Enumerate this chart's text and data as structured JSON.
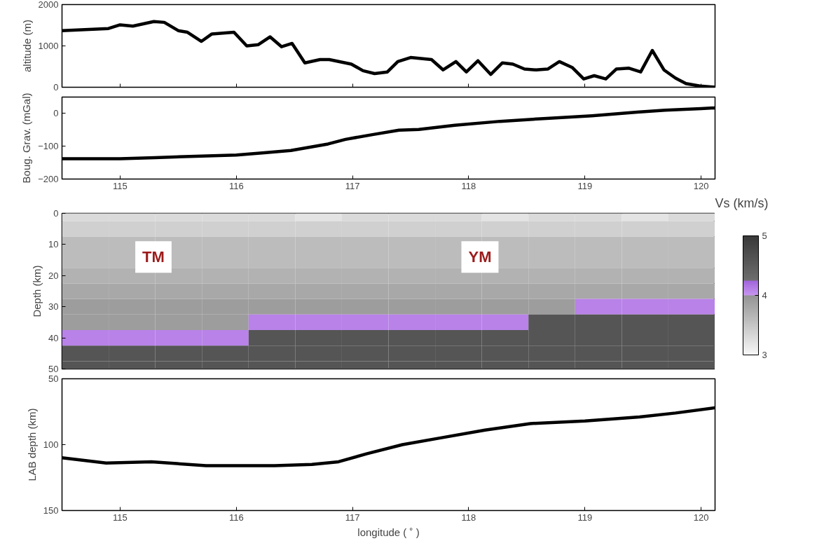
{
  "chart_data": [
    {
      "type": "line",
      "ylabel": "altitude (m)",
      "xlim": [
        114.5,
        120.12
      ],
      "xticks": [
        115,
        116,
        117,
        118,
        119,
        120
      ],
      "ylim": [
        0,
        2000
      ],
      "yticks": [
        0,
        1000,
        2000
      ],
      "tick_labels": "y",
      "color": "#000000",
      "x": [
        114.5,
        114.9,
        115.0,
        115.11,
        115.29,
        115.38,
        115.5,
        115.58,
        115.7,
        115.79,
        115.98,
        116.09,
        116.19,
        116.29,
        116.39,
        116.48,
        116.59,
        116.72,
        116.8,
        116.99,
        117.09,
        117.19,
        117.3,
        117.39,
        117.5,
        117.68,
        117.78,
        117.89,
        117.98,
        118.08,
        118.19,
        118.29,
        118.38,
        118.48,
        118.58,
        118.68,
        118.78,
        118.89,
        118.99,
        119.08,
        119.18,
        119.27,
        119.38,
        119.48,
        119.58,
        119.68,
        119.78,
        119.87,
        119.99,
        120.12
      ],
      "values": [
        1370,
        1420,
        1510,
        1480,
        1590,
        1570,
        1370,
        1330,
        1110,
        1290,
        1330,
        1000,
        1030,
        1220,
        980,
        1060,
        590,
        670,
        670,
        560,
        400,
        330,
        370,
        620,
        720,
        670,
        420,
        620,
        370,
        640,
        310,
        590,
        560,
        440,
        420,
        440,
        620,
        480,
        200,
        280,
        200,
        440,
        460,
        370,
        890,
        420,
        220,
        90,
        30,
        0
      ]
    },
    {
      "type": "line",
      "ylabel": "Boug. Grav. (mGal)",
      "xlim": [
        114.5,
        120.12
      ],
      "xticks": [
        115,
        116,
        117,
        118,
        119,
        120
      ],
      "ylim": [
        -200,
        50
      ],
      "yticks": [
        -200,
        -100,
        0
      ],
      "color": "#000000",
      "x": [
        114.5,
        115.0,
        115.3,
        115.6,
        116.0,
        116.24,
        116.47,
        116.79,
        116.94,
        117.18,
        117.4,
        117.57,
        117.88,
        118.27,
        118.67,
        119.06,
        119.45,
        119.69,
        120.0,
        120.12
      ],
      "values": [
        -138,
        -138,
        -135,
        -131,
        -127,
        -120,
        -113,
        -93,
        -79,
        -64,
        -51,
        -49,
        -36,
        -24,
        -15,
        -7,
        4,
        10,
        15,
        17
      ]
    },
    {
      "type": "heatmap",
      "ylabel": "Depth (km)",
      "clabel": "Vs (km/s)",
      "clim": [
        3,
        5
      ],
      "cticks": [
        3,
        4,
        5
      ],
      "annotations": [
        "TM",
        "YM"
      ],
      "categories": [
        null,
        null,
        null,
        null,
        null,
        null,
        null,
        null,
        null,
        null,
        null,
        null,
        null,
        null
      ],
      "y_categories": [
        "0",
        null,
        "10",
        null,
        "20",
        null,
        "30",
        null,
        "40",
        null,
        "50"
      ],
      "cells": [
        [
          3.3,
          3.3,
          3.3,
          3.3,
          3.3,
          3.2,
          3.3,
          3.3,
          3.3,
          3.2,
          3.3,
          3.3,
          3.2,
          3.3
        ],
        [
          3.4,
          3.4,
          3.4,
          3.4,
          3.4,
          3.4,
          3.4,
          3.4,
          3.4,
          3.4,
          3.4,
          3.4,
          3.4,
          3.4
        ],
        [
          3.6,
          3.6,
          3.6,
          3.6,
          3.6,
          3.6,
          3.6,
          3.6,
          3.6,
          3.6,
          3.6,
          3.6,
          3.6,
          3.6
        ],
        [
          3.6,
          3.6,
          3.6,
          3.6,
          3.6,
          3.6,
          3.6,
          3.6,
          3.6,
          3.6,
          3.6,
          3.6,
          3.6,
          3.6
        ],
        [
          3.7,
          3.7,
          3.7,
          3.7,
          3.7,
          3.7,
          3.7,
          3.7,
          3.7,
          3.7,
          3.7,
          3.7,
          3.7,
          3.7
        ],
        [
          3.8,
          3.8,
          3.8,
          3.8,
          3.8,
          3.8,
          3.8,
          3.8,
          3.8,
          3.8,
          3.8,
          3.8,
          3.8,
          3.8
        ],
        [
          3.9,
          3.9,
          3.9,
          3.9,
          3.9,
          3.9,
          3.9,
          3.9,
          3.9,
          3.9,
          3.9,
          4.1,
          4.1,
          4.1
        ],
        [
          3.9,
          3.9,
          3.9,
          3.9,
          4.1,
          4.1,
          4.1,
          4.1,
          4.1,
          4.1,
          4.6,
          4.6,
          4.6,
          4.6
        ],
        [
          4.1,
          4.1,
          4.1,
          4.1,
          4.6,
          4.6,
          4.6,
          4.6,
          4.6,
          4.6,
          4.6,
          4.6,
          4.6,
          4.6
        ],
        [
          4.6,
          4.6,
          4.6,
          4.6,
          4.6,
          4.6,
          4.6,
          4.6,
          4.6,
          4.6,
          4.6,
          4.6,
          4.6,
          4.6
        ],
        [
          4.6,
          4.6,
          4.6,
          4.6,
          4.6,
          4.6,
          4.6,
          4.6,
          4.6,
          4.6,
          4.6,
          4.6,
          4.6,
          4.6
        ]
      ]
    },
    {
      "type": "line",
      "ylabel": "LAB depth (km)",
      "xlabel": "longitude ( ˚ )",
      "xlim": [
        114.5,
        120.12
      ],
      "xticks": [
        115,
        116,
        117,
        118,
        119,
        120
      ],
      "ylim": [
        150,
        50
      ],
      "yticks": [
        50,
        100,
        150
      ],
      "color": "#000000",
      "x": [
        114.5,
        114.88,
        115.27,
        115.74,
        116.33,
        116.65,
        116.88,
        117.12,
        117.43,
        117.75,
        118.14,
        118.53,
        119.0,
        119.47,
        119.78,
        120.12
      ],
      "values": [
        110,
        114,
        113,
        116,
        116,
        115,
        113,
        107,
        100,
        95,
        89,
        84,
        82,
        79,
        76,
        72
      ]
    }
  ]
}
